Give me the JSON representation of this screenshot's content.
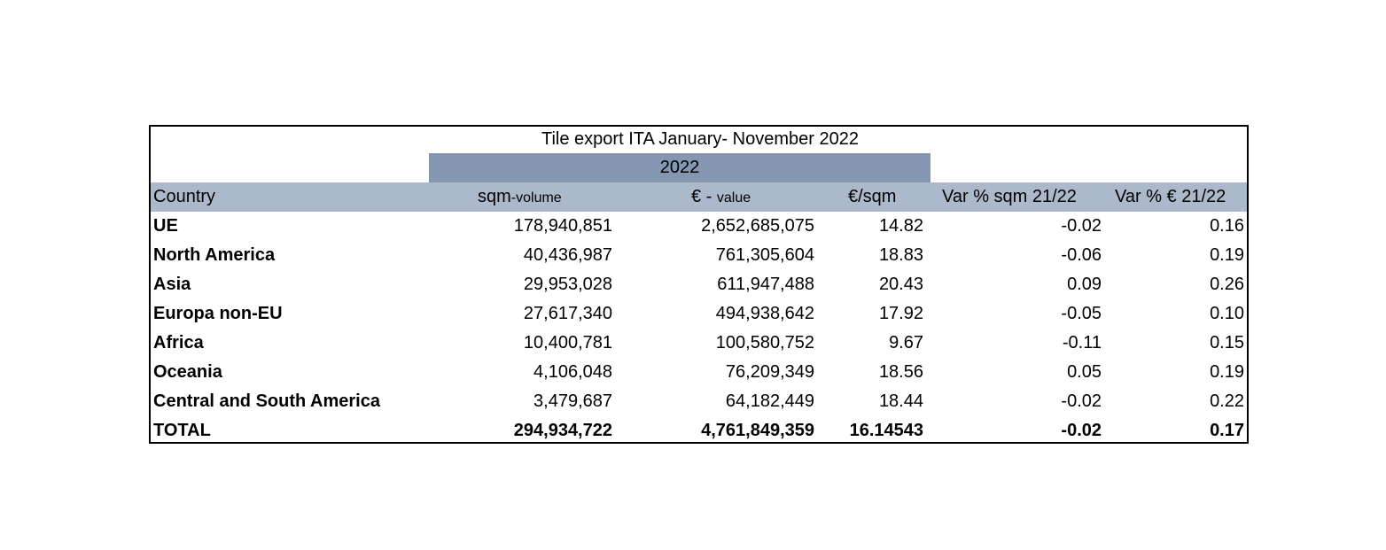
{
  "table": {
    "title": "Tile export ITA January- November 2022",
    "year": "2022",
    "header": [
      "Country",
      [
        "sqm",
        "-volume"
      ],
      [
        "€ - ",
        "value"
      ],
      "€/sqm",
      "Var % sqm 21/22",
      "Var % € 21/22"
    ],
    "rows": [
      [
        "UE",
        "178,940,851",
        "2,652,685,075",
        "14.82",
        "-0.02",
        "0.16"
      ],
      [
        "North America",
        "40,436,987",
        "761,305,604",
        "18.83",
        "-0.06",
        "0.19"
      ],
      [
        "Asia",
        "29,953,028",
        "611,947,488",
        "20.43",
        "0.09",
        "0.26"
      ],
      [
        "Europa non-EU",
        "27,617,340",
        "494,938,642",
        "17.92",
        "-0.05",
        "0.10"
      ],
      [
        "Africa",
        "10,400,781",
        "100,580,752",
        "9.67",
        "-0.11",
        "0.15"
      ],
      [
        "Oceania",
        "4,106,048",
        "76,209,349",
        "18.56",
        "0.05",
        "0.19"
      ],
      [
        "Central and South America",
        "3,479,687",
        "64,182,449",
        "18.44",
        "-0.02",
        "0.22"
      ],
      [
        "TOTAL",
        "294,934,722",
        "4,761,849,359",
        "16.14543",
        "-0.02",
        "0.17"
      ]
    ]
  }
}
